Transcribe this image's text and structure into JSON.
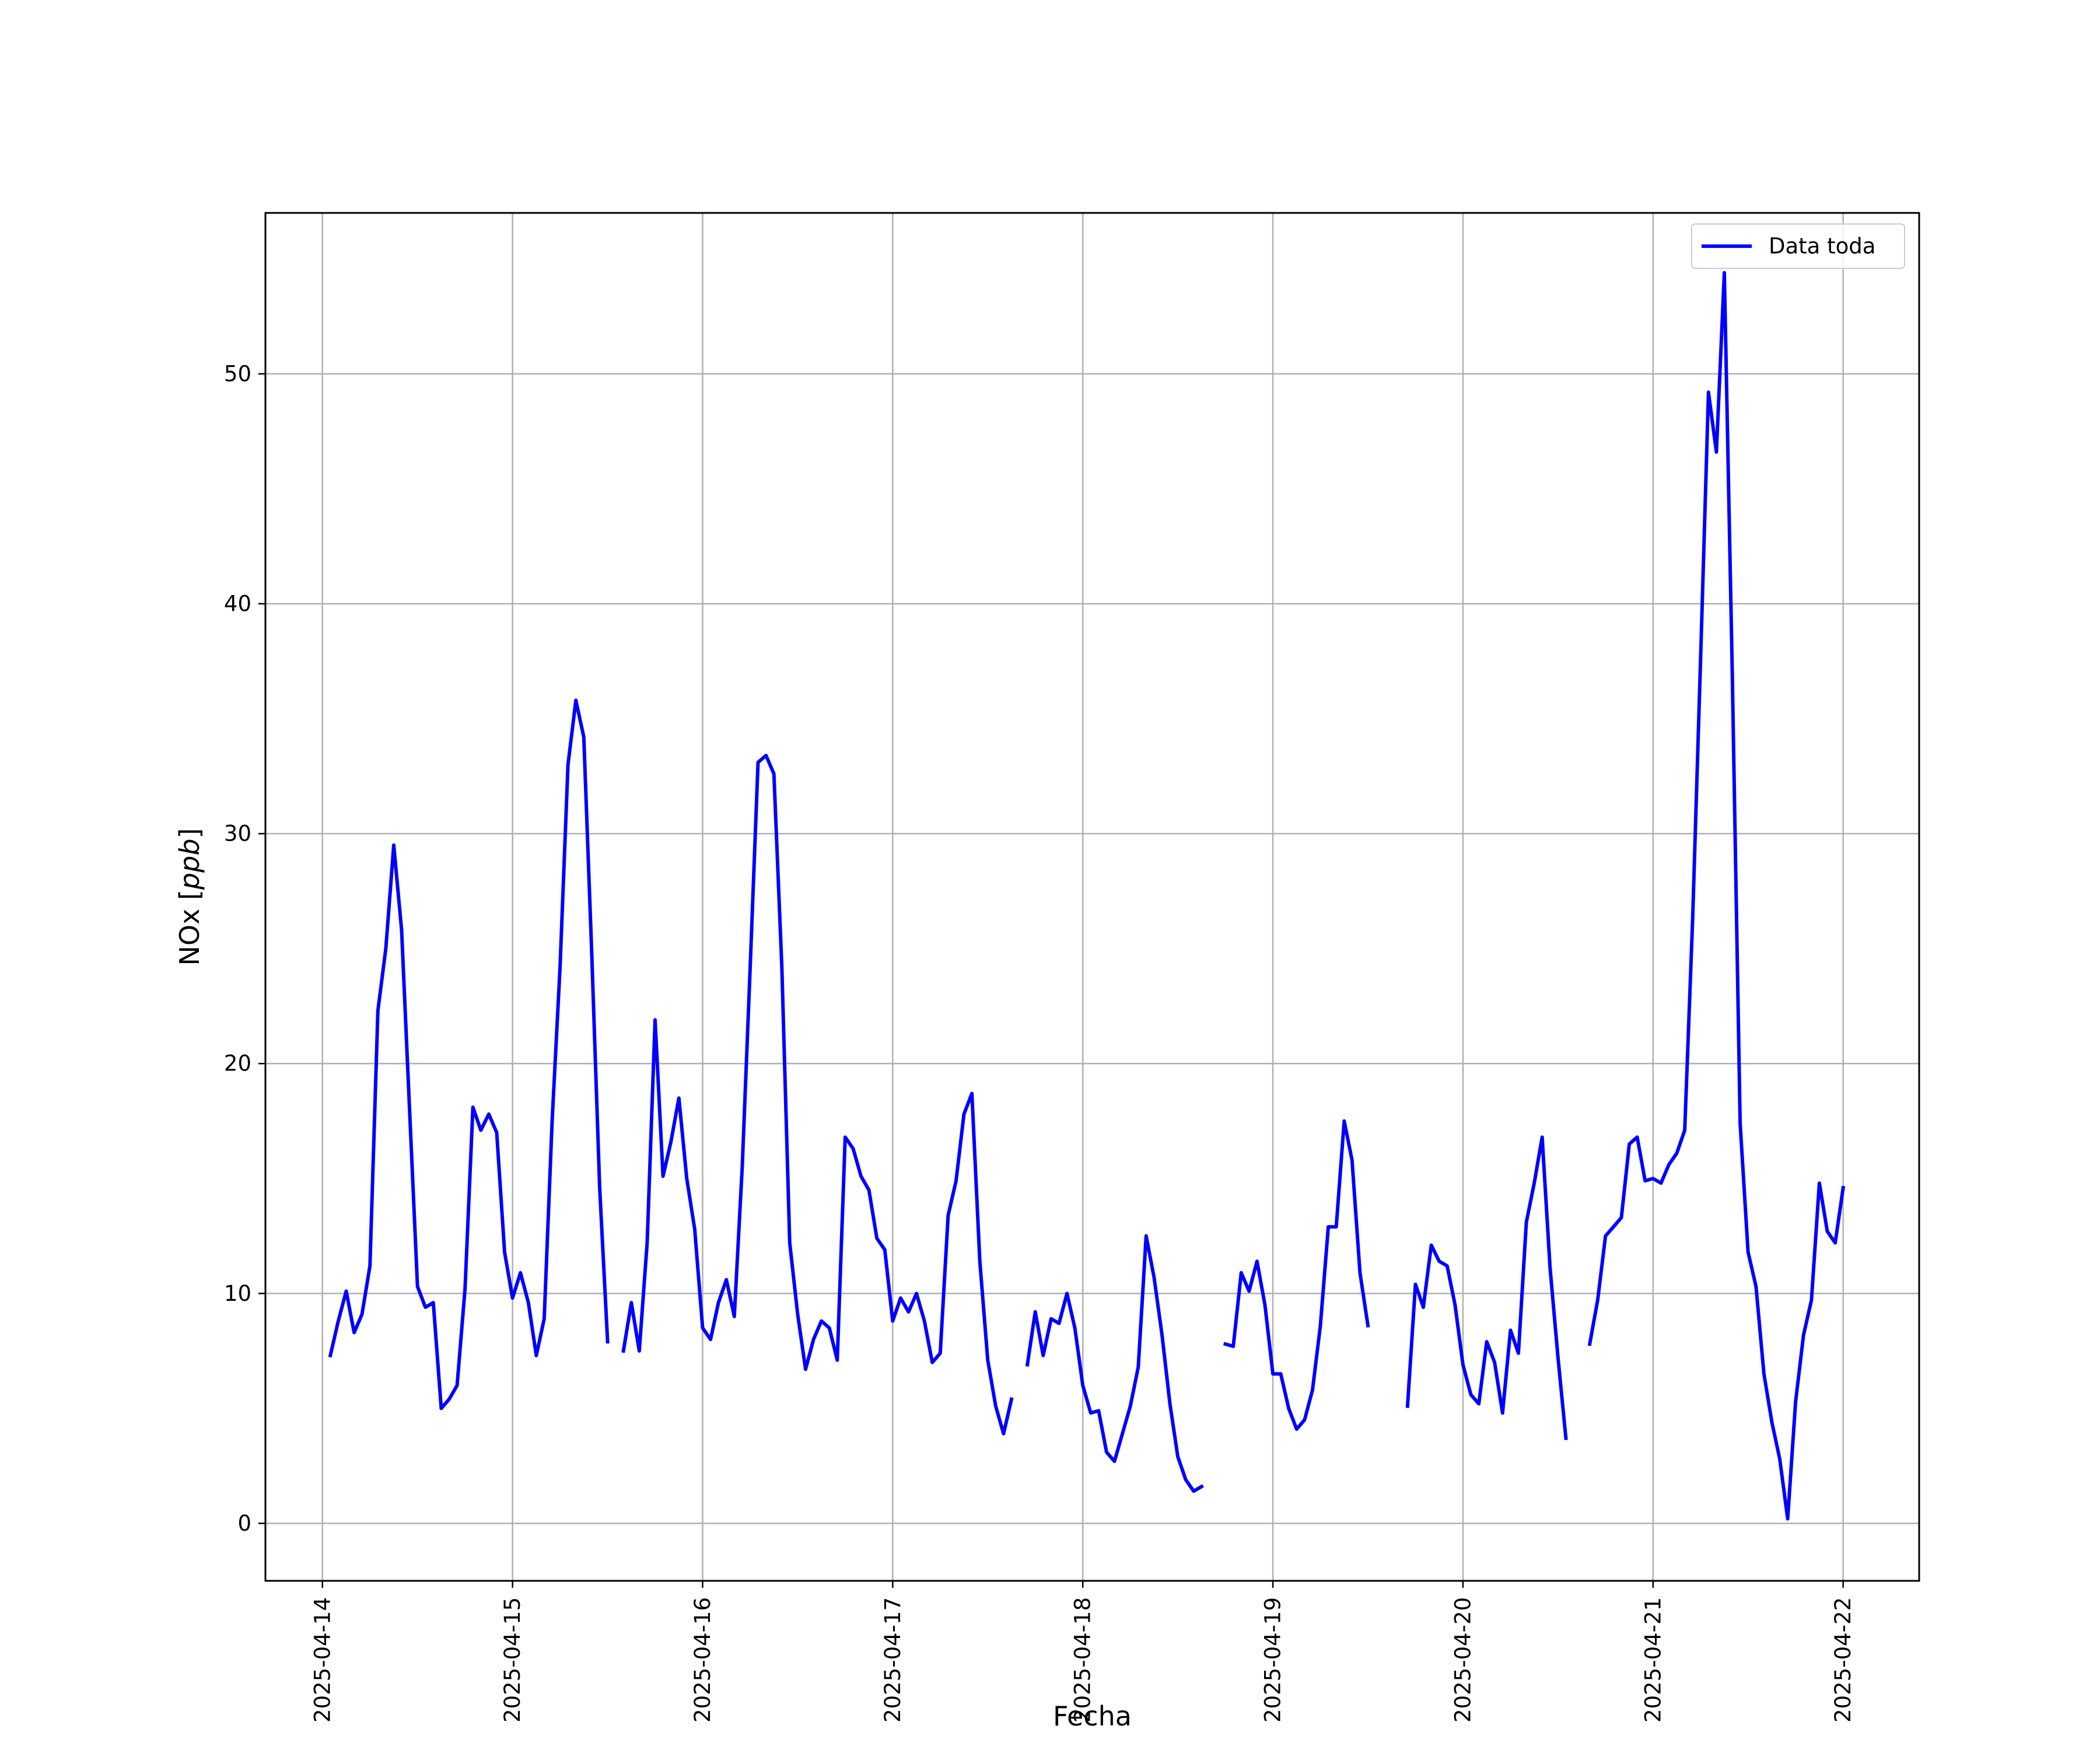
{
  "chart_data": {
    "type": "line",
    "title": "",
    "xlabel": "Fecha",
    "ylabel_text": "NOx [",
    "ylabel_unit": "ppb",
    "ylabel_close": "]",
    "xlim": [
      "2025-04-13T16:48",
      "2025-04-22T09:36"
    ],
    "ylim": [
      -2.5,
      57
    ],
    "x_ticks": [
      "2025-04-14",
      "2025-04-15",
      "2025-04-16",
      "2025-04-17",
      "2025-04-18",
      "2025-04-19",
      "2025-04-20",
      "2025-04-21",
      "2025-04-22"
    ],
    "y_ticks": [
      0,
      10,
      20,
      30,
      40,
      50
    ],
    "grid": true,
    "legend_position": "top-right",
    "line_color": "#0000ff",
    "series": [
      {
        "name": "Data toda",
        "segments": [
          [
            [
              "2025-04-14T01:00",
              7.3
            ],
            [
              "2025-04-14T02:00",
              8.8
            ],
            [
              "2025-04-14T03:00",
              10.1
            ],
            [
              "2025-04-14T04:00",
              8.3
            ],
            [
              "2025-04-14T05:00",
              9.1
            ],
            [
              "2025-04-14T06:00",
              11.2
            ],
            [
              "2025-04-14T07:00",
              22.3
            ],
            [
              "2025-04-14T08:00",
              25.0
            ],
            [
              "2025-04-14T09:00",
              29.5
            ],
            [
              "2025-04-14T10:00",
              25.8
            ],
            [
              "2025-04-14T11:00",
              18.0
            ],
            [
              "2025-04-14T12:00",
              10.3
            ],
            [
              "2025-04-14T13:00",
              9.4
            ],
            [
              "2025-04-14T14:00",
              9.6
            ],
            [
              "2025-04-14T15:00",
              5.0
            ],
            [
              "2025-04-14T16:00",
              5.4
            ],
            [
              "2025-04-14T17:00",
              6.0
            ],
            [
              "2025-04-14T18:00",
              10.2
            ],
            [
              "2025-04-14T19:00",
              18.1
            ],
            [
              "2025-04-14T20:00",
              17.1
            ],
            [
              "2025-04-14T21:00",
              17.8
            ],
            [
              "2025-04-14T22:00",
              17.0
            ],
            [
              "2025-04-14T23:00",
              11.8
            ],
            [
              "2025-04-15T00:00",
              9.8
            ],
            [
              "2025-04-15T01:00",
              10.9
            ],
            [
              "2025-04-15T02:00",
              9.6
            ],
            [
              "2025-04-15T03:00",
              7.3
            ],
            [
              "2025-04-15T04:00",
              8.9
            ],
            [
              "2025-04-15T05:00",
              17.5
            ],
            [
              "2025-04-15T06:00",
              24.2
            ],
            [
              "2025-04-15T07:00",
              33.0
            ],
            [
              "2025-04-15T08:00",
              35.8
            ],
            [
              "2025-04-15T09:00",
              34.2
            ],
            [
              "2025-04-15T10:00",
              24.8
            ],
            [
              "2025-04-15T11:00",
              14.6
            ],
            [
              "2025-04-15T12:00",
              7.9
            ]
          ],
          [
            [
              "2025-04-15T14:00",
              7.5
            ],
            [
              "2025-04-15T15:00",
              9.6
            ],
            [
              "2025-04-15T16:00",
              7.5
            ],
            [
              "2025-04-15T17:00",
              12.2
            ],
            [
              "2025-04-15T18:00",
              21.9
            ],
            [
              "2025-04-15T19:00",
              15.1
            ],
            [
              "2025-04-15T20:00",
              16.6
            ],
            [
              "2025-04-15T21:00",
              18.5
            ],
            [
              "2025-04-15T22:00",
              15.0
            ],
            [
              "2025-04-15T23:00",
              12.8
            ],
            [
              "2025-04-16T00:00",
              8.5
            ],
            [
              "2025-04-16T01:00",
              8.0
            ],
            [
              "2025-04-16T02:00",
              9.6
            ],
            [
              "2025-04-16T03:00",
              10.6
            ],
            [
              "2025-04-16T04:00",
              9.0
            ],
            [
              "2025-04-16T05:00",
              15.5
            ],
            [
              "2025-04-16T06:00",
              24.1
            ],
            [
              "2025-04-16T07:00",
              33.1
            ],
            [
              "2025-04-16T08:00",
              33.4
            ],
            [
              "2025-04-16T09:00",
              32.6
            ],
            [
              "2025-04-16T10:00",
              24.2
            ],
            [
              "2025-04-16T11:00",
              12.2
            ],
            [
              "2025-04-16T12:00",
              9.1
            ],
            [
              "2025-04-16T13:00",
              6.7
            ],
            [
              "2025-04-16T14:00",
              8.0
            ],
            [
              "2025-04-16T15:00",
              8.8
            ],
            [
              "2025-04-16T16:00",
              8.5
            ],
            [
              "2025-04-16T17:00",
              7.1
            ],
            [
              "2025-04-16T18:00",
              16.8
            ],
            [
              "2025-04-16T19:00",
              16.3
            ],
            [
              "2025-04-16T20:00",
              15.1
            ],
            [
              "2025-04-16T21:00",
              14.5
            ],
            [
              "2025-04-16T22:00",
              12.4
            ],
            [
              "2025-04-16T23:00",
              11.9
            ],
            [
              "2025-04-17T00:00",
              8.8
            ],
            [
              "2025-04-17T01:00",
              9.8
            ],
            [
              "2025-04-17T02:00",
              9.2
            ],
            [
              "2025-04-17T03:00",
              10.0
            ],
            [
              "2025-04-17T04:00",
              8.8
            ],
            [
              "2025-04-17T05:00",
              7.0
            ],
            [
              "2025-04-17T06:00",
              7.4
            ],
            [
              "2025-04-17T07:00",
              13.4
            ],
            [
              "2025-04-17T08:00",
              14.9
            ],
            [
              "2025-04-17T09:00",
              17.8
            ],
            [
              "2025-04-17T10:00",
              18.7
            ],
            [
              "2025-04-17T11:00",
              11.4
            ],
            [
              "2025-04-17T12:00",
              7.1
            ],
            [
              "2025-04-17T13:00",
              5.1
            ],
            [
              "2025-04-17T14:00",
              3.9
            ],
            [
              "2025-04-17T15:00",
              5.4
            ]
          ],
          [
            [
              "2025-04-17T17:00",
              6.9
            ],
            [
              "2025-04-17T18:00",
              9.2
            ],
            [
              "2025-04-17T19:00",
              7.3
            ],
            [
              "2025-04-17T20:00",
              8.9
            ],
            [
              "2025-04-17T21:00",
              8.7
            ],
            [
              "2025-04-17T22:00",
              10.0
            ],
            [
              "2025-04-17T23:00",
              8.5
            ],
            [
              "2025-04-18T00:00",
              6.0
            ],
            [
              "2025-04-18T01:00",
              4.8
            ],
            [
              "2025-04-18T02:00",
              4.9
            ],
            [
              "2025-04-18T03:00",
              3.1
            ],
            [
              "2025-04-18T04:00",
              2.7
            ],
            [
              "2025-04-18T05:00",
              3.9
            ],
            [
              "2025-04-18T06:00",
              5.1
            ],
            [
              "2025-04-18T07:00",
              6.8
            ],
            [
              "2025-04-18T08:00",
              12.5
            ],
            [
              "2025-04-18T09:00",
              10.7
            ],
            [
              "2025-04-18T10:00",
              8.2
            ],
            [
              "2025-04-18T11:00",
              5.2
            ],
            [
              "2025-04-18T12:00",
              2.9
            ],
            [
              "2025-04-18T13:00",
              1.9
            ],
            [
              "2025-04-18T14:00",
              1.4
            ],
            [
              "2025-04-18T15:00",
              1.6
            ]
          ],
          [
            [
              "2025-04-18T18:00",
              7.8
            ],
            [
              "2025-04-18T19:00",
              7.7
            ],
            [
              "2025-04-18T20:00",
              10.9
            ],
            [
              "2025-04-18T21:00",
              10.1
            ],
            [
              "2025-04-18T22:00",
              11.4
            ],
            [
              "2025-04-18T23:00",
              9.5
            ],
            [
              "2025-04-19T00:00",
              6.5
            ],
            [
              "2025-04-19T01:00",
              6.5
            ],
            [
              "2025-04-19T02:00",
              5.0
            ],
            [
              "2025-04-19T03:00",
              4.1
            ],
            [
              "2025-04-19T04:00",
              4.5
            ],
            [
              "2025-04-19T05:00",
              5.8
            ],
            [
              "2025-04-19T06:00",
              8.6
            ],
            [
              "2025-04-19T07:00",
              12.9
            ],
            [
              "2025-04-19T08:00",
              12.9
            ],
            [
              "2025-04-19T09:00",
              17.5
            ],
            [
              "2025-04-19T10:00",
              15.8
            ],
            [
              "2025-04-19T11:00",
              10.9
            ],
            [
              "2025-04-19T12:00",
              8.6
            ]
          ],
          [
            [
              "2025-04-19T17:00",
              5.1
            ],
            [
              "2025-04-19T18:00",
              10.4
            ],
            [
              "2025-04-19T19:00",
              9.4
            ],
            [
              "2025-04-19T20:00",
              12.1
            ],
            [
              "2025-04-19T21:00",
              11.4
            ],
            [
              "2025-04-19T22:00",
              11.2
            ],
            [
              "2025-04-19T23:00",
              9.5
            ],
            [
              "2025-04-20T00:00",
              6.9
            ],
            [
              "2025-04-20T01:00",
              5.6
            ],
            [
              "2025-04-20T02:00",
              5.2
            ],
            [
              "2025-04-20T03:00",
              7.9
            ],
            [
              "2025-04-20T04:00",
              7.0
            ],
            [
              "2025-04-20T05:00",
              4.8
            ],
            [
              "2025-04-20T06:00",
              8.4
            ],
            [
              "2025-04-20T07:00",
              7.4
            ],
            [
              "2025-04-20T08:00",
              13.1
            ],
            [
              "2025-04-20T09:00",
              14.8
            ],
            [
              "2025-04-20T10:00",
              16.8
            ],
            [
              "2025-04-20T11:00",
              11.1
            ],
            [
              "2025-04-20T12:00",
              7.2
            ],
            [
              "2025-04-20T13:00",
              3.7
            ]
          ],
          [
            [
              "2025-04-20T16:00",
              7.8
            ],
            [
              "2025-04-20T17:00",
              9.7
            ],
            [
              "2025-04-20T18:00",
              12.5
            ],
            [
              "2025-04-20T19:00",
              12.9
            ],
            [
              "2025-04-20T20:00",
              13.3
            ],
            [
              "2025-04-20T21:00",
              16.5
            ],
            [
              "2025-04-20T22:00",
              16.8
            ],
            [
              "2025-04-20T23:00",
              14.9
            ],
            [
              "2025-04-21T00:00",
              15.0
            ],
            [
              "2025-04-21T01:00",
              14.8
            ],
            [
              "2025-04-21T02:00",
              15.6
            ],
            [
              "2025-04-21T03:00",
              16.1
            ],
            [
              "2025-04-21T04:00",
              17.1
            ],
            [
              "2025-04-21T05:00",
              26.3
            ],
            [
              "2025-04-21T06:00",
              37.6
            ],
            [
              "2025-04-21T07:00",
              49.2
            ],
            [
              "2025-04-21T08:00",
              46.6
            ],
            [
              "2025-04-21T09:00",
              54.4
            ],
            [
              "2025-04-21T10:00",
              37.0
            ],
            [
              "2025-04-21T11:00",
              17.4
            ],
            [
              "2025-04-21T12:00",
              11.8
            ],
            [
              "2025-04-21T13:00",
              10.3
            ],
            [
              "2025-04-21T14:00",
              6.5
            ],
            [
              "2025-04-21T15:00",
              4.4
            ],
            [
              "2025-04-21T16:00",
              2.8
            ],
            [
              "2025-04-21T17:00",
              0.2
            ],
            [
              "2025-04-21T18:00",
              5.3
            ],
            [
              "2025-04-21T19:00",
              8.2
            ],
            [
              "2025-04-21T20:00",
              9.7
            ],
            [
              "2025-04-21T21:00",
              14.8
            ],
            [
              "2025-04-21T22:00",
              12.7
            ],
            [
              "2025-04-21T23:00",
              12.2
            ],
            [
              "2025-04-22T00:00",
              14.6
            ]
          ]
        ]
      }
    ]
  }
}
